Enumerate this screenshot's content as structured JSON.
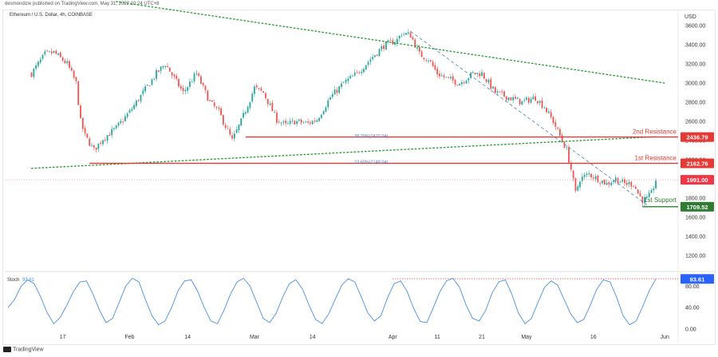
{
  "header": {
    "published": "desmondizw published on TradingView.com, May 31, 2022 10:24 UTC+8",
    "symbol": "Ethereum / U.S. Dollar, 4h, COINBASE",
    "currency": "USD"
  },
  "footer": {
    "brand": "TradingView"
  },
  "colors": {
    "up": "#26a69a",
    "down": "#ef5350",
    "resistance": "#e53935",
    "support": "#2e7d32",
    "trend": "#2e9d3c",
    "stoch": "#4a90e2",
    "price_tag": "#f23645"
  },
  "chart_data": [
    {
      "type": "candlestick",
      "title": "Ethereum / U.S. Dollar, 4h, COINBASE",
      "ylabel": "USD",
      "ylim": [
        1050,
        3700
      ],
      "y_ticks": [
        1200,
        1400,
        1600,
        1800,
        2000,
        2200,
        2400,
        2600,
        2800,
        3000,
        3200,
        3400,
        3600
      ],
      "y_tick_labels": [
        "1200.00",
        "1400.00",
        "1600.00",
        "1800.00",
        "2000.00",
        "2200.00",
        "2400.00",
        "2600.00",
        "2800.00",
        "3000.00",
        "3200.00",
        "3400.00",
        "3600.00"
      ],
      "x_tick_labels": [
        "17",
        "Feb",
        "14",
        "Mar",
        "14",
        "Apr",
        "11",
        "21",
        "May",
        "16",
        "Jun"
      ],
      "x_tick_dates": [
        "2022-01-17",
        "2022-02-01",
        "2022-02-14",
        "2022-03-01",
        "2022-03-14",
        "2022-04-01",
        "2022-04-11",
        "2022-04-21",
        "2022-05-01",
        "2022-05-16",
        "2022-06-01"
      ],
      "price_path": [
        [
          "2022-01-10",
          3100
        ],
        [
          "2022-01-13",
          3300
        ],
        [
          "2022-01-15",
          3320
        ],
        [
          "2022-01-18",
          3200
        ],
        [
          "2022-01-20",
          3000
        ],
        [
          "2022-01-21",
          2600
        ],
        [
          "2022-01-22",
          2450
        ],
        [
          "2022-01-24",
          2300
        ],
        [
          "2022-01-26",
          2420
        ],
        [
          "2022-01-29",
          2530
        ],
        [
          "2022-02-01",
          2700
        ],
        [
          "2022-02-04",
          2900
        ],
        [
          "2022-02-07",
          3100
        ],
        [
          "2022-02-09",
          3200
        ],
        [
          "2022-02-11",
          3050
        ],
        [
          "2022-02-13",
          2900
        ],
        [
          "2022-02-16",
          3100
        ],
        [
          "2022-02-19",
          2800
        ],
        [
          "2022-02-21",
          2700
        ],
        [
          "2022-02-24",
          2400
        ],
        [
          "2022-02-26",
          2600
        ],
        [
          "2022-03-01",
          2950
        ],
        [
          "2022-03-03",
          2900
        ],
        [
          "2022-03-06",
          2620
        ],
        [
          "2022-03-08",
          2560
        ],
        [
          "2022-03-10",
          2600
        ],
        [
          "2022-03-13",
          2580
        ],
        [
          "2022-03-15",
          2620
        ],
        [
          "2022-03-18",
          2850
        ],
        [
          "2022-03-21",
          3000
        ],
        [
          "2022-03-24",
          3100
        ],
        [
          "2022-03-27",
          3250
        ],
        [
          "2022-03-30",
          3390
        ],
        [
          "2022-04-02",
          3450
        ],
        [
          "2022-04-03",
          3520
        ],
        [
          "2022-04-05",
          3500
        ],
        [
          "2022-04-07",
          3300
        ],
        [
          "2022-04-09",
          3250
        ],
        [
          "2022-04-11",
          3100
        ],
        [
          "2022-04-13",
          3050
        ],
        [
          "2022-04-16",
          3000
        ],
        [
          "2022-04-19",
          3100
        ],
        [
          "2022-04-21",
          3100
        ],
        [
          "2022-04-24",
          2900
        ],
        [
          "2022-04-27",
          2850
        ],
        [
          "2022-04-30",
          2800
        ],
        [
          "2022-05-03",
          2850
        ],
        [
          "2022-05-05",
          2750
        ],
        [
          "2022-05-07",
          2600
        ],
        [
          "2022-05-09",
          2400
        ],
        [
          "2022-05-10",
          2300
        ],
        [
          "2022-05-11",
          2100
        ],
        [
          "2022-05-12",
          1850
        ],
        [
          "2022-05-13",
          2000
        ],
        [
          "2022-05-15",
          2050
        ],
        [
          "2022-05-17",
          2000
        ],
        [
          "2022-05-19",
          1950
        ],
        [
          "2022-05-21",
          2000
        ],
        [
          "2022-05-23",
          1950
        ],
        [
          "2022-05-25",
          1950
        ],
        [
          "2022-05-26",
          1850
        ],
        [
          "2022-05-27",
          1780
        ],
        [
          "2022-05-28",
          1790
        ],
        [
          "2022-05-29",
          1850
        ],
        [
          "2022-05-30",
          1990
        ]
      ],
      "levels": [
        {
          "label": "2nd Resistance",
          "value": 2436.79,
          "value_label": "2436.79",
          "start": "2022-02-27"
        },
        {
          "label": "1st Resistance",
          "value": 2162.76,
          "value_label": "2162.76",
          "start": "2022-01-23"
        },
        {
          "label": "1st Support",
          "value": 1709.52,
          "value_label": "1709.52",
          "start": "2022-05-27"
        }
      ],
      "fib_labels": [
        {
          "text": "38.20%(2422.04)",
          "value": 2422.04,
          "date": "2022-03-20"
        },
        {
          "text": "23.60%(2148.04)",
          "value": 2148.04,
          "date": "2022-03-20"
        }
      ],
      "current_price": {
        "value": 1991.0,
        "label": "1991.00"
      },
      "trendlines": {
        "upper": [
          [
            "2022-01-29",
            3850
          ],
          [
            "2022-06-01",
            3000
          ]
        ],
        "lower": [
          [
            "2022-01-10",
            2110
          ],
          [
            "2022-05-30",
            2440
          ]
        ],
        "channel": [
          [
            "2022-04-05",
            3540
          ],
          [
            "2022-05-28",
            1730
          ]
        ]
      }
    },
    {
      "type": "line",
      "title": "Stoch",
      "series": [
        {
          "name": "Stoch",
          "last_label": "93.61"
        }
      ],
      "ylim": [
        0,
        100
      ],
      "y_ticks": [
        0,
        40,
        80
      ],
      "y_tick_labels": [
        "0.00",
        "40.00",
        "80.00"
      ],
      "last_value": 93.61,
      "last_label": "93.61",
      "overbought": 80,
      "values": [
        40,
        55,
        80,
        92,
        85,
        60,
        30,
        10,
        22,
        45,
        70,
        88,
        90,
        65,
        35,
        12,
        20,
        50,
        80,
        95,
        88,
        55,
        25,
        8,
        15,
        40,
        72,
        90,
        92,
        70,
        40,
        15,
        10,
        35,
        65,
        88,
        95,
        80,
        50,
        20,
        12,
        30,
        60,
        85,
        92,
        75,
        45,
        18,
        10,
        28,
        55,
        82,
        94,
        88,
        60,
        30,
        15,
        25,
        58,
        85,
        90,
        70,
        38,
        14,
        12,
        40,
        70,
        90,
        95,
        78,
        45,
        20,
        15,
        35,
        68,
        88,
        92,
        65,
        30,
        10,
        20,
        50,
        78,
        90,
        82,
        55,
        28,
        12,
        18,
        45,
        75,
        92,
        88,
        60,
        25,
        8,
        15,
        42,
        72,
        93.61
      ]
    }
  ]
}
